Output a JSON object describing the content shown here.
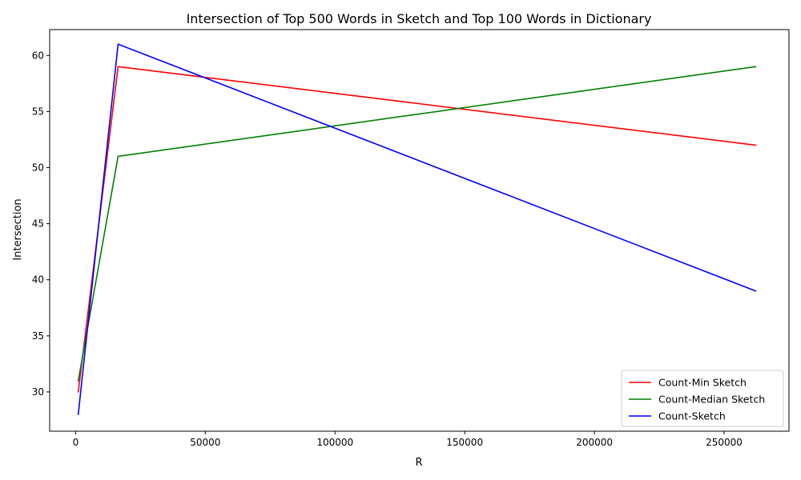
{
  "chart_data": {
    "type": "line",
    "title": "Intersection of Top 500 Words in Sketch and Top 100 Words in Dictionary",
    "xlabel": "R",
    "ylabel": "Intersection",
    "x": [
      1024,
      16384,
      262144
    ],
    "xlim": [
      -10000,
      275000
    ],
    "ylim": [
      26.5,
      62.3
    ],
    "xticks": [
      0,
      50000,
      100000,
      150000,
      200000,
      250000
    ],
    "xtick_labels": [
      "0",
      "50000",
      "100000",
      "150000",
      "200000",
      "250000"
    ],
    "yticks": [
      30,
      35,
      40,
      45,
      50,
      55,
      60
    ],
    "ytick_labels": [
      "30",
      "35",
      "40",
      "45",
      "50",
      "55",
      "60"
    ],
    "grid": false,
    "legend_position": "lower-right",
    "series": [
      {
        "name": "Count-Min Sketch",
        "values": [
          30,
          59,
          52
        ],
        "color": "#ff0000"
      },
      {
        "name": "Count-Median Sketch",
        "values": [
          31,
          51,
          59
        ],
        "color": "#008000"
      },
      {
        "name": "Count-Sketch",
        "values": [
          28,
          61,
          39
        ],
        "color": "#0000ff"
      }
    ]
  }
}
